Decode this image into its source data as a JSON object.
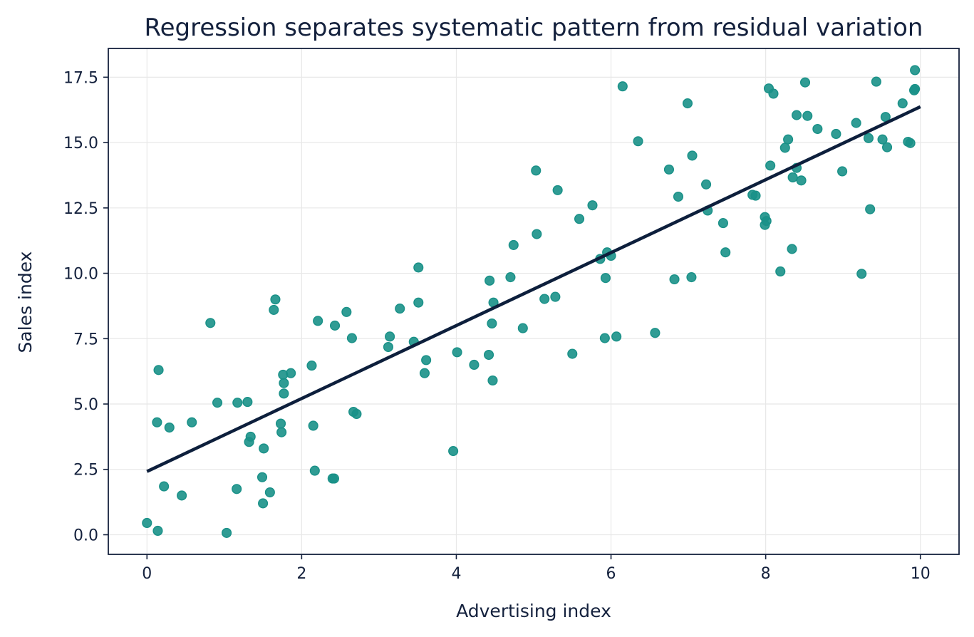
{
  "chart_data": {
    "type": "scatter",
    "title": "Regression separates systematic pattern from residual variation",
    "xlabel": "Advertising index",
    "ylabel": "Sales index",
    "xlim": [
      -0.5,
      10.5
    ],
    "ylim": [
      -0.75,
      18.6
    ],
    "xticks": [
      0,
      2,
      4,
      6,
      8,
      10
    ],
    "xtick_labels": [
      "0",
      "2",
      "4",
      "6",
      "8",
      "10"
    ],
    "yticks": [
      0.0,
      2.5,
      5.0,
      7.5,
      10.0,
      12.5,
      15.0,
      17.5
    ],
    "ytick_labels": [
      "0.0",
      "2.5",
      "5.0",
      "7.5",
      "10.0",
      "12.5",
      "15.0",
      "17.5"
    ],
    "grid": true,
    "point_color": "#1a9188",
    "line_color": "#0d1f3c",
    "series": [
      {
        "points": [
          [
            0.0,
            0.45
          ],
          [
            0.13,
            4.3
          ],
          [
            0.14,
            0.15
          ],
          [
            0.15,
            6.3
          ],
          [
            0.22,
            1.85
          ],
          [
            0.29,
            4.1
          ],
          [
            0.45,
            1.5
          ],
          [
            0.58,
            4.3
          ],
          [
            0.82,
            8.1
          ],
          [
            0.91,
            5.05
          ],
          [
            1.03,
            0.07
          ],
          [
            1.16,
            1.75
          ],
          [
            1.17,
            5.05
          ],
          [
            1.3,
            5.08
          ],
          [
            1.32,
            3.55
          ],
          [
            1.34,
            3.75
          ],
          [
            1.49,
            2.2
          ],
          [
            1.5,
            1.2
          ],
          [
            1.51,
            3.3
          ],
          [
            1.59,
            1.62
          ],
          [
            1.64,
            8.6
          ],
          [
            1.66,
            9.0
          ],
          [
            1.73,
            4.25
          ],
          [
            1.74,
            3.92
          ],
          [
            1.76,
            6.12
          ],
          [
            1.77,
            5.4
          ],
          [
            1.77,
            5.8
          ],
          [
            1.86,
            6.18
          ],
          [
            2.13,
            6.47
          ],
          [
            2.15,
            4.17
          ],
          [
            2.17,
            2.45
          ],
          [
            2.21,
            8.18
          ],
          [
            2.4,
            2.15
          ],
          [
            2.42,
            2.15
          ],
          [
            2.43,
            8.0
          ],
          [
            2.58,
            8.52
          ],
          [
            2.65,
            7.52
          ],
          [
            2.67,
            4.7
          ],
          [
            2.71,
            4.62
          ],
          [
            3.12,
            7.18
          ],
          [
            3.14,
            7.58
          ],
          [
            3.27,
            8.65
          ],
          [
            3.45,
            7.38
          ],
          [
            3.51,
            10.22
          ],
          [
            3.51,
            8.88
          ],
          [
            3.59,
            6.18
          ],
          [
            3.61,
            6.68
          ],
          [
            3.96,
            3.2
          ],
          [
            4.01,
            6.98
          ],
          [
            4.23,
            6.5
          ],
          [
            4.42,
            6.88
          ],
          [
            4.43,
            9.72
          ],
          [
            4.46,
            8.08
          ],
          [
            4.47,
            5.9
          ],
          [
            4.48,
            8.88
          ],
          [
            4.74,
            11.08
          ],
          [
            4.7,
            9.85
          ],
          [
            4.86,
            7.9
          ],
          [
            5.03,
            13.93
          ],
          [
            5.04,
            11.5
          ],
          [
            5.14,
            9.02
          ],
          [
            5.28,
            9.1
          ],
          [
            5.31,
            13.18
          ],
          [
            5.5,
            6.92
          ],
          [
            5.59,
            12.08
          ],
          [
            5.76,
            12.6
          ],
          [
            5.86,
            10.55
          ],
          [
            5.92,
            7.52
          ],
          [
            5.93,
            9.82
          ],
          [
            5.95,
            10.8
          ],
          [
            6.0,
            10.67
          ],
          [
            6.07,
            7.58
          ],
          [
            6.15,
            17.15
          ],
          [
            6.35,
            15.05
          ],
          [
            6.57,
            7.72
          ],
          [
            6.75,
            13.97
          ],
          [
            6.82,
            9.77
          ],
          [
            6.87,
            12.93
          ],
          [
            6.99,
            16.5
          ],
          [
            7.05,
            14.5
          ],
          [
            7.04,
            9.85
          ],
          [
            7.23,
            13.4
          ],
          [
            7.25,
            12.4
          ],
          [
            7.45,
            11.92
          ],
          [
            7.48,
            10.8
          ],
          [
            7.83,
            13.0
          ],
          [
            7.87,
            12.97
          ],
          [
            7.99,
            12.15
          ],
          [
            7.99,
            11.85
          ],
          [
            8.01,
            12.0
          ],
          [
            8.04,
            17.07
          ],
          [
            8.06,
            14.12
          ],
          [
            8.1,
            16.87
          ],
          [
            8.19,
            10.07
          ],
          [
            8.25,
            14.8
          ],
          [
            8.29,
            15.12
          ],
          [
            8.34,
            10.93
          ],
          [
            8.35,
            13.67
          ],
          [
            8.4,
            16.05
          ],
          [
            8.4,
            14.03
          ],
          [
            8.46,
            13.55
          ],
          [
            8.51,
            17.3
          ],
          [
            8.54,
            16.02
          ],
          [
            8.67,
            15.52
          ],
          [
            8.91,
            15.33
          ],
          [
            8.99,
            13.9
          ],
          [
            9.17,
            15.75
          ],
          [
            9.24,
            9.98
          ],
          [
            9.33,
            15.17
          ],
          [
            9.35,
            12.45
          ],
          [
            9.43,
            17.33
          ],
          [
            9.51,
            15.12
          ],
          [
            9.55,
            15.98
          ],
          [
            9.57,
            14.82
          ],
          [
            9.77,
            16.5
          ],
          [
            9.84,
            15.03
          ],
          [
            9.87,
            14.98
          ],
          [
            9.92,
            17.0
          ],
          [
            9.93,
            17.05
          ],
          [
            9.93,
            17.77
          ]
        ]
      }
    ],
    "fit_line": {
      "x": [
        0,
        10
      ],
      "y": [
        2.42,
        16.37
      ]
    }
  }
}
